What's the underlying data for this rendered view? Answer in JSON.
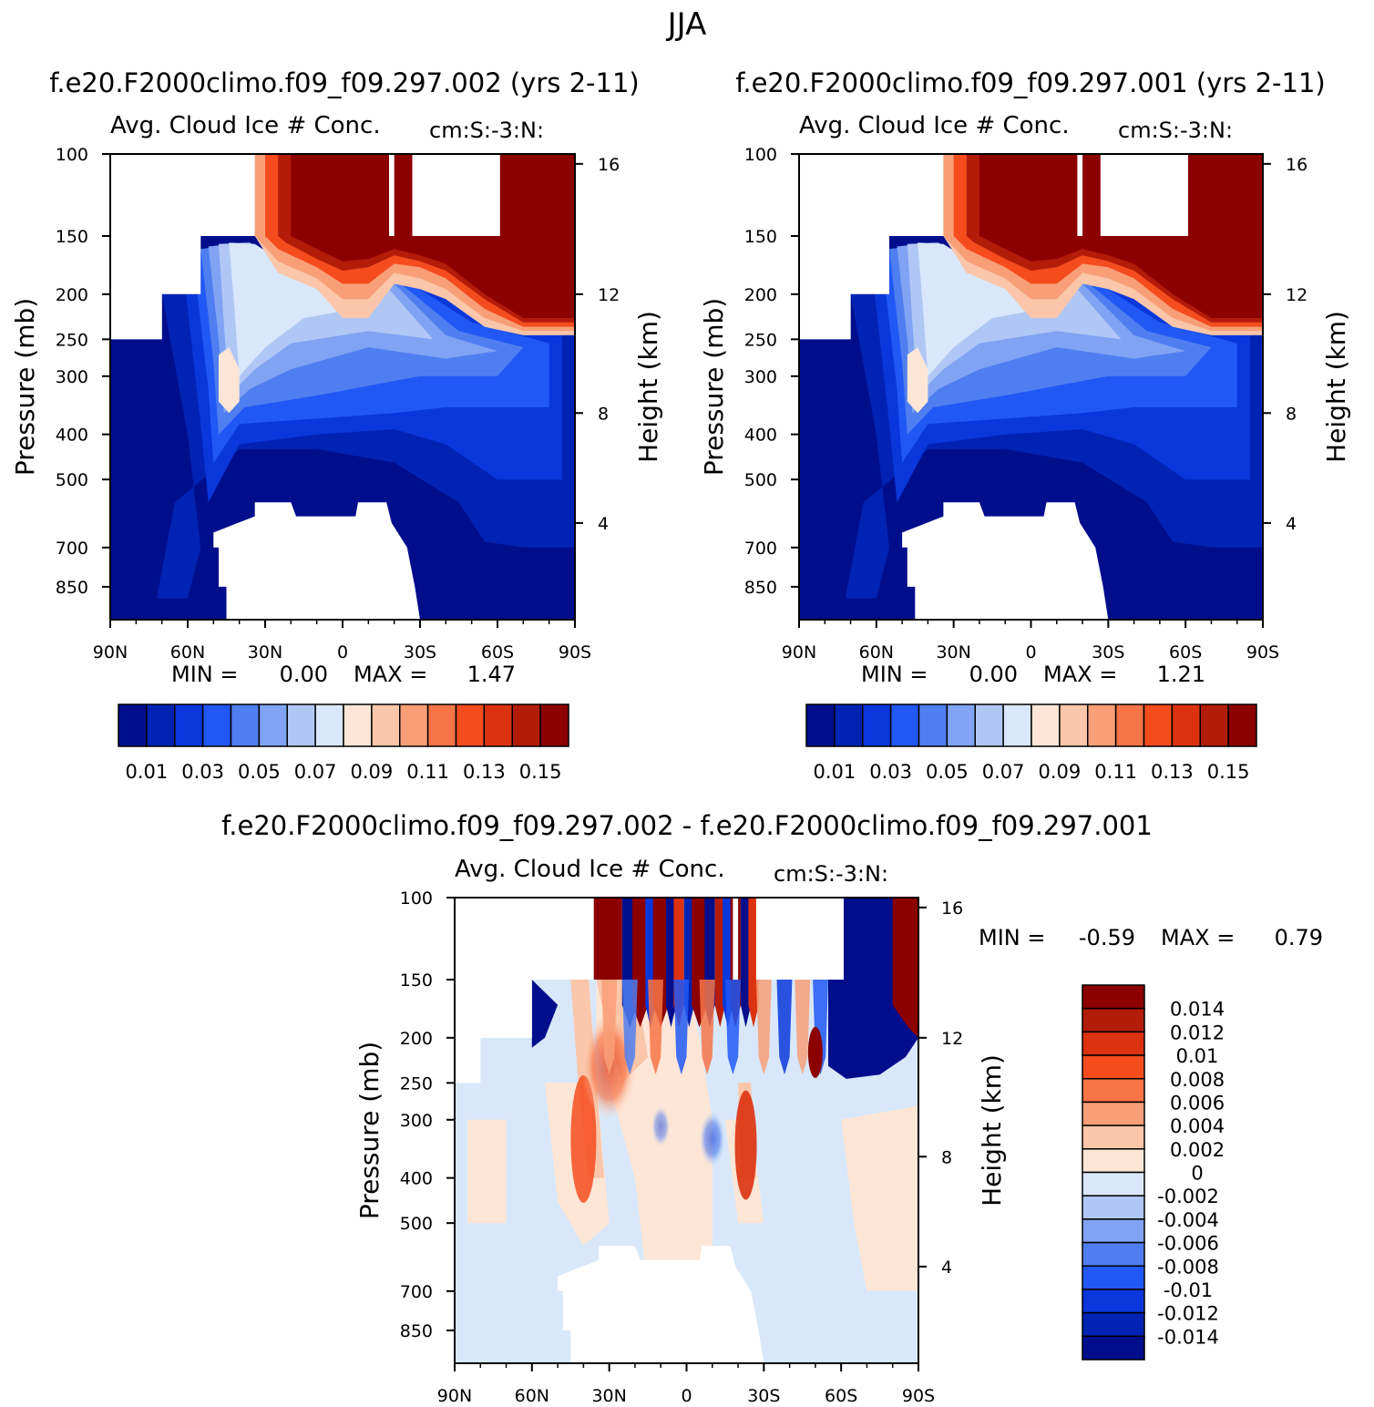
{
  "figure": {
    "season": "JJA",
    "panels": [
      {
        "id": "top-left",
        "case_title": "f.e20.F2000climo.f09_f09.297.002 (yrs 2-11)",
        "left_label": "Avg. Cloud Ice # Conc.",
        "right_label": "cm:S:-3:N:",
        "ylabel": "Pressure (mb)",
        "ylabel_right": "Height (km)",
        "min_label": "MIN =",
        "min_value": "0.00",
        "max_label": "MAX =",
        "max_value": "1.47"
      },
      {
        "id": "top-right",
        "case_title": "f.e20.F2000climo.f09_f09.297.001 (yrs 2-11)",
        "left_label": "Avg. Cloud Ice # Conc.",
        "right_label": "cm:S:-3:N:",
        "ylabel": "Pressure (mb)",
        "ylabel_right": "Height (km)",
        "min_label": "MIN =",
        "min_value": "0.00",
        "max_label": "MAX =",
        "max_value": "1.21"
      },
      {
        "id": "bottom-diff",
        "case_title": "f.e20.F2000climo.f09_f09.297.002 - f.e20.F2000climo.f09_f09.297.001",
        "left_label": "Avg. Cloud Ice # Conc.",
        "right_label": "cm:S:-3:N:",
        "ylabel": "Pressure (mb)",
        "ylabel_right": "Height (km)",
        "min_label": "MIN =",
        "min_value": "-0.59",
        "max_label": "MAX =",
        "max_value": "0.79"
      }
    ]
  },
  "chart_data": [
    {
      "type": "heatmap",
      "title": "f.e20.F2000climo.f09_f09.297.002 (yrs 2-11)",
      "x_ticks": [
        "90N",
        "60N",
        "30N",
        "0",
        "30S",
        "60S",
        "90S"
      ],
      "xlim": [
        90,
        -90
      ],
      "y_ticks": [
        100,
        150,
        200,
        250,
        300,
        400,
        500,
        700,
        850
      ],
      "ylim": [
        1000,
        100
      ],
      "y_scale": "log",
      "y2_ticks": [
        16,
        12,
        8,
        4
      ],
      "colorbar_levels": [
        0.01,
        0.02,
        0.03,
        0.04,
        0.05,
        0.06,
        0.07,
        0.08,
        0.09,
        0.1,
        0.11,
        0.12,
        0.13,
        0.14,
        0.15
      ],
      "colorbar_labels": [
        "0.01",
        "0.03",
        "0.05",
        "0.07",
        "0.09",
        "0.11",
        "0.13",
        "0.15"
      ],
      "colorbar_orientation": "horizontal",
      "min": 0.0,
      "max": 1.47
    },
    {
      "type": "heatmap",
      "title": "f.e20.F2000climo.f09_f09.297.001 (yrs 2-11)",
      "x_ticks": [
        "90N",
        "60N",
        "30N",
        "0",
        "30S",
        "60S",
        "90S"
      ],
      "xlim": [
        90,
        -90
      ],
      "y_ticks": [
        100,
        150,
        200,
        250,
        300,
        400,
        500,
        700,
        850
      ],
      "ylim": [
        1000,
        100
      ],
      "y_scale": "log",
      "y2_ticks": [
        16,
        12,
        8,
        4
      ],
      "colorbar_levels": [
        0.01,
        0.02,
        0.03,
        0.04,
        0.05,
        0.06,
        0.07,
        0.08,
        0.09,
        0.1,
        0.11,
        0.12,
        0.13,
        0.14,
        0.15
      ],
      "colorbar_labels": [
        "0.01",
        "0.03",
        "0.05",
        "0.07",
        "0.09",
        "0.11",
        "0.13",
        "0.15"
      ],
      "colorbar_orientation": "horizontal",
      "min": 0.0,
      "max": 1.21
    },
    {
      "type": "heatmap",
      "title": "f.e20.F2000climo.f09_f09.297.002 - f.e20.F2000climo.f09_f09.297.001",
      "x_ticks": [
        "90N",
        "60N",
        "30N",
        "0",
        "30S",
        "60S",
        "90S"
      ],
      "xlim": [
        90,
        -90
      ],
      "y_ticks": [
        100,
        150,
        200,
        250,
        300,
        400,
        500,
        700,
        850
      ],
      "ylim": [
        1000,
        100
      ],
      "y_scale": "log",
      "y2_ticks": [
        16,
        12,
        8,
        4
      ],
      "colorbar_levels": [
        -0.014,
        -0.012,
        -0.01,
        -0.008,
        -0.006,
        -0.004,
        -0.002,
        0,
        0.002,
        0.004,
        0.006,
        0.008,
        0.01,
        0.012,
        0.014
      ],
      "colorbar_labels": [
        "0.014",
        "0.012",
        "0.01",
        "0.008",
        "0.006",
        "0.004",
        "0.002",
        "0",
        "-0.002",
        "-0.004",
        "-0.006",
        "-0.008",
        "-0.01",
        "-0.012",
        "-0.014"
      ],
      "colorbar_orientation": "vertical",
      "min": -0.59,
      "max": 0.79
    }
  ],
  "colors": {
    "palette": [
      "#000e8c",
      "#0023b4",
      "#0a37dc",
      "#2158f5",
      "#4f7ef0",
      "#80a3f3",
      "#b0c7f6",
      "#d8e8fa",
      "#fde6d6",
      "#fbc6a9",
      "#f89f78",
      "#f77446",
      "#f54c1e",
      "#dc3210",
      "#b41c0a",
      "#8c0000"
    ]
  }
}
